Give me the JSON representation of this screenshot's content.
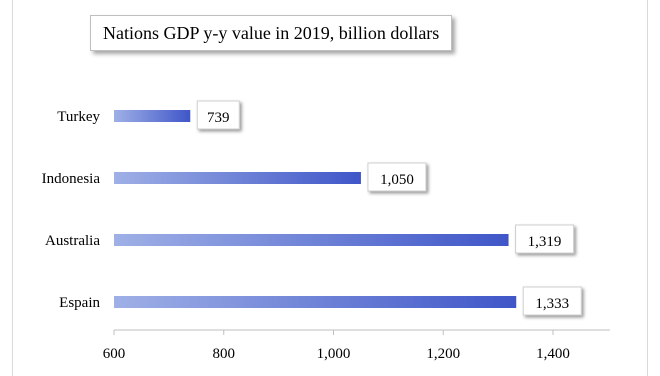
{
  "chart_data": {
    "type": "bar",
    "orientation": "horizontal",
    "title": "Nations GDP y-y value in 2019, billion dollars",
    "categories": [
      "Turkey",
      "Indonesia",
      "Australia",
      "Espain"
    ],
    "values": [
      739,
      1050,
      1319,
      1333
    ],
    "value_labels": [
      "739",
      "1,050",
      "1,319",
      "1,333"
    ],
    "xlim": [
      600,
      1500
    ],
    "xticks": [
      600,
      800,
      1000,
      1200,
      1400
    ],
    "xtick_labels": [
      "600",
      "800",
      "1,000",
      "1,200",
      "1,400"
    ],
    "grid": false,
    "legend": "none",
    "colors": {
      "bar_light": "#9fb0e6",
      "bar_dark": "#3f56c8",
      "axis": "#bfbfbf",
      "text": "#000000"
    }
  }
}
